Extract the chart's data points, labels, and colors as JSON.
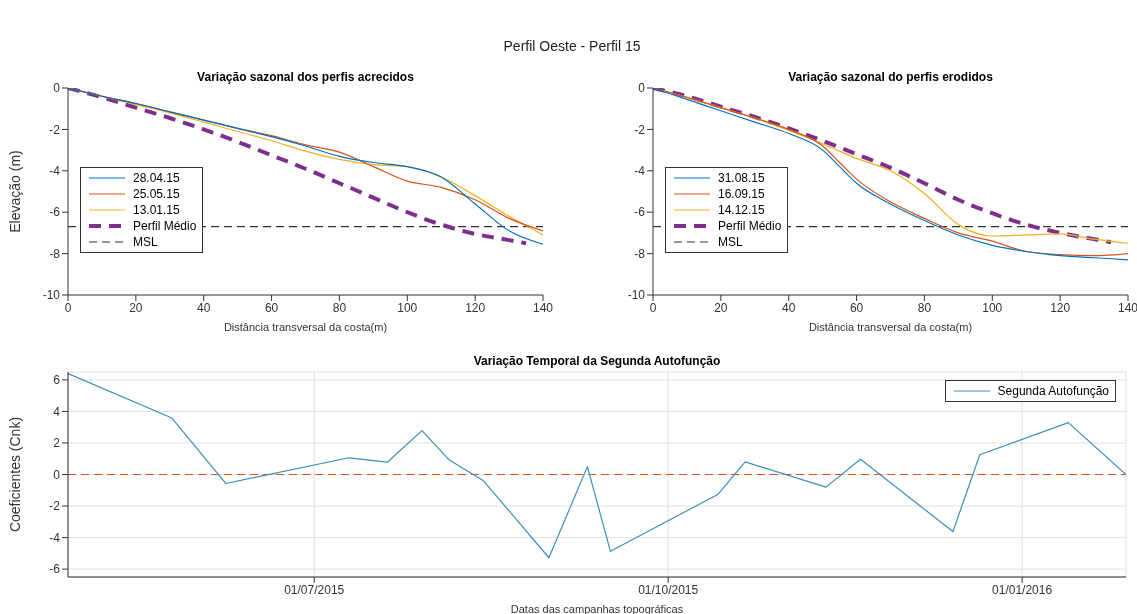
{
  "chart_data": [
    {
      "type": "line",
      "title": "Variação sazonal dos perfis acrecidos",
      "xlabel": "Distância transversal da costa(m)",
      "ylabel": "Elevação (m)",
      "annotations": [
        "Perfil Oeste - Perfil 15"
      ],
      "x": [
        0,
        10,
        20,
        30,
        40,
        50,
        60,
        70,
        80,
        90,
        100,
        110,
        120,
        130,
        140
      ],
      "series": [
        {
          "name": "28.04.15",
          "color": "#0072bd",
          "values": [
            0,
            -0.4,
            -0.75,
            -1.15,
            -1.55,
            -1.95,
            -2.35,
            -2.8,
            -3.3,
            -3.6,
            -3.8,
            -4.3,
            -5.6,
            -6.9,
            -7.55
          ]
        },
        {
          "name": "25.05.15",
          "color": "#d95319",
          "values": [
            0,
            -0.4,
            -0.75,
            -1.15,
            -1.55,
            -1.95,
            -2.3,
            -2.75,
            -3.1,
            -3.8,
            -4.5,
            -4.8,
            -5.4,
            -6.3,
            -6.9
          ]
        },
        {
          "name": "13.01.15",
          "color": "#edb120",
          "values": [
            0,
            -0.4,
            -0.8,
            -1.2,
            -1.65,
            -2.1,
            -2.55,
            -3.05,
            -3.45,
            -3.7,
            -3.8,
            -4.3,
            -5.2,
            -6.2,
            -7.1
          ]
        },
        {
          "name": "Perfil Médio",
          "color": "#7e2f8e",
          "line_style": "dashed",
          "x": [
            0,
            10,
            20,
            30,
            40,
            50,
            60,
            70,
            80,
            90,
            100,
            110,
            120,
            130,
            135
          ],
          "values": [
            0,
            -0.45,
            -0.95,
            -1.45,
            -2.0,
            -2.6,
            -3.25,
            -3.9,
            -4.6,
            -5.3,
            -6.0,
            -6.6,
            -7.05,
            -7.35,
            -7.5
          ]
        }
      ],
      "ref_lines": [
        {
          "axis": "y",
          "value": -6.7,
          "label": "MSL",
          "color": "#333333",
          "line_style": "dashed"
        }
      ],
      "xlim": [
        0,
        140
      ],
      "xticks": [
        0,
        20,
        40,
        60,
        80,
        100,
        120,
        140
      ],
      "ylim": [
        -10,
        0
      ],
      "yticks": [
        -10,
        -8,
        -6,
        -4,
        -2,
        0
      ],
      "legend": "left",
      "line_style": "solid",
      "marker": "none"
    },
    {
      "type": "line",
      "title": "Variação sazonal do perfis erodidos",
      "xlabel": "Distância transversal da costa(m)",
      "x": [
        0,
        10,
        20,
        30,
        40,
        50,
        55,
        60,
        70,
        80,
        90,
        100,
        110,
        120,
        130,
        140
      ],
      "series": [
        {
          "name": "31.08.15",
          "color": "#0072bd",
          "values": [
            0,
            -0.55,
            -1.1,
            -1.65,
            -2.2,
            -3.0,
            -3.8,
            -4.6,
            -5.6,
            -6.4,
            -7.1,
            -7.6,
            -7.9,
            -8.1,
            -8.2,
            -8.3
          ]
        },
        {
          "name": "16.09.15",
          "color": "#d95319",
          "values": [
            0,
            -0.45,
            -0.95,
            -1.45,
            -2.0,
            -2.8,
            -3.6,
            -4.4,
            -5.5,
            -6.3,
            -7.0,
            -7.4,
            -7.9,
            -8.05,
            -8.1,
            -8.0
          ]
        },
        {
          "name": "14.12.15",
          "color": "#edb120",
          "values": [
            0,
            -0.45,
            -0.95,
            -1.45,
            -2.05,
            -2.7,
            -3.05,
            -3.4,
            -4.0,
            -5.1,
            -6.6,
            -7.15,
            -7.1,
            -7.05,
            -7.3,
            -7.5
          ]
        },
        {
          "name": "Perfil Médio",
          "color": "#7e2f8e",
          "line_style": "dashed",
          "x": [
            0,
            10,
            20,
            30,
            40,
            50,
            60,
            70,
            80,
            90,
            100,
            110,
            120,
            130,
            135
          ],
          "values": [
            0,
            -0.4,
            -0.9,
            -1.4,
            -1.95,
            -2.55,
            -3.2,
            -3.85,
            -4.6,
            -5.4,
            -6.05,
            -6.6,
            -7.0,
            -7.3,
            -7.45
          ]
        }
      ],
      "ref_lines": [
        {
          "axis": "y",
          "value": -6.7,
          "label": "MSL",
          "color": "#333333",
          "line_style": "dashed"
        }
      ],
      "xlim": [
        0,
        140
      ],
      "xticks": [
        0,
        20,
        40,
        60,
        80,
        100,
        120,
        140
      ],
      "ylim": [
        -10,
        0
      ],
      "yticks": [
        -10,
        -8,
        -6,
        -4,
        -2,
        0
      ],
      "legend": "left",
      "line_style": "solid",
      "marker": "none"
    },
    {
      "type": "line",
      "title": "Variação Temporal da Segunda Autofunção",
      "xlabel": "Datas das campanhas topográficas",
      "ylabel": "Coeficientes (Cnk)",
      "x": [
        "2015-04-28",
        "2015-05-25",
        "2015-06-08",
        "2015-07-10",
        "2015-07-20",
        "2015-07-29",
        "2015-08-05",
        "2015-08-14",
        "2015-08-31",
        "2015-09-10",
        "2015-09-16",
        "2015-10-14",
        "2015-10-21",
        "2015-11-11",
        "2015-11-20",
        "2015-12-14",
        "2015-12-21",
        "2016-01-13",
        "2016-01-28"
      ],
      "series": [
        {
          "name": "Segunda Autofunção",
          "color": "#3a8fb7",
          "values": [
            6.4,
            3.58,
            -0.57,
            1.06,
            0.78,
            2.78,
            0.94,
            -0.4,
            -5.28,
            0.5,
            -4.87,
            -1.25,
            0.8,
            -0.8,
            0.97,
            -3.62,
            1.25,
            3.29,
            0
          ]
        }
      ],
      "ref_lines": [
        {
          "axis": "y",
          "value": 0,
          "color": "#d95319",
          "line_style": "dashed"
        }
      ],
      "xlim": [
        "2015-04-28",
        "2016-01-28"
      ],
      "xticks": [
        {
          "value": "2015-07-01",
          "label": "01/07/2015"
        },
        {
          "value": "2015-10-01",
          "label": "01/10/2015"
        },
        {
          "value": "2016-01-01",
          "label": "01/01/2016"
        }
      ],
      "ylim": [
        -6.5,
        6.5
      ],
      "yticks": [
        -6,
        -4,
        -2,
        0,
        2,
        4,
        6
      ],
      "grid": true,
      "legend": "top right",
      "line_style": "solid",
      "marker": "none"
    }
  ]
}
